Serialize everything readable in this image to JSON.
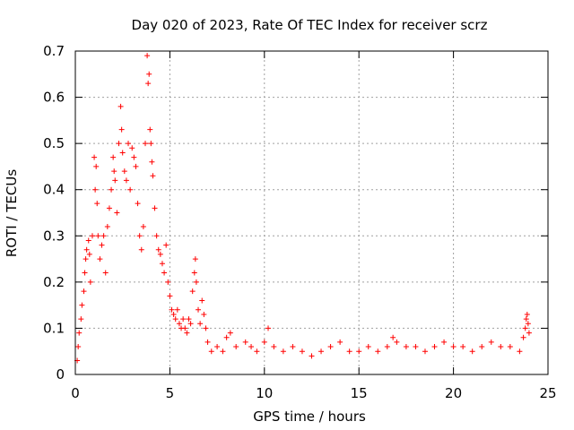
{
  "chart_data": {
    "type": "scatter",
    "title": "Day 020 of 2023, Rate Of TEC Index for receiver scrz",
    "xlabel": "GPS time / hours",
    "ylabel": "ROTI / TECUs",
    "xlim": [
      0,
      25
    ],
    "ylim": [
      0,
      0.7
    ],
    "x_ticks": [
      0,
      5,
      10,
      15,
      20,
      25
    ],
    "x_tick_labels": [
      "0",
      "5",
      "10",
      "15",
      "20",
      "25"
    ],
    "y_ticks": [
      0,
      0.1,
      0.2,
      0.3,
      0.4,
      0.5,
      0.6,
      0.7
    ],
    "y_tick_labels": [
      "0",
      "0.1",
      "0.2",
      "0.3",
      "0.4",
      "0.5",
      "0.6",
      "0.7"
    ],
    "grid": true,
    "marker": "plus",
    "color": "#ff0000",
    "series": [
      {
        "name": "ROTI",
        "points": [
          [
            0.1,
            0.03
          ],
          [
            0.15,
            0.06
          ],
          [
            0.2,
            0.09
          ],
          [
            0.3,
            0.12
          ],
          [
            0.35,
            0.15
          ],
          [
            0.45,
            0.18
          ],
          [
            0.5,
            0.22
          ],
          [
            0.55,
            0.25
          ],
          [
            0.6,
            0.27
          ],
          [
            0.7,
            0.29
          ],
          [
            0.75,
            0.26
          ],
          [
            0.8,
            0.2
          ],
          [
            0.9,
            0.3
          ],
          [
            1.0,
            0.47
          ],
          [
            1.05,
            0.4
          ],
          [
            1.1,
            0.45
          ],
          [
            1.15,
            0.37
          ],
          [
            1.2,
            0.3
          ],
          [
            1.3,
            0.25
          ],
          [
            1.4,
            0.28
          ],
          [
            1.5,
            0.3
          ],
          [
            1.6,
            0.22
          ],
          [
            1.7,
            0.32
          ],
          [
            1.8,
            0.36
          ],
          [
            1.9,
            0.4
          ],
          [
            2.0,
            0.47
          ],
          [
            2.05,
            0.44
          ],
          [
            2.1,
            0.42
          ],
          [
            2.2,
            0.35
          ],
          [
            2.3,
            0.5
          ],
          [
            2.4,
            0.58
          ],
          [
            2.45,
            0.53
          ],
          [
            2.5,
            0.48
          ],
          [
            2.6,
            0.44
          ],
          [
            2.7,
            0.42
          ],
          [
            2.8,
            0.5
          ],
          [
            2.9,
            0.4
          ],
          [
            3.0,
            0.49
          ],
          [
            3.1,
            0.47
          ],
          [
            3.2,
            0.45
          ],
          [
            3.3,
            0.37
          ],
          [
            3.4,
            0.3
          ],
          [
            3.5,
            0.27
          ],
          [
            3.6,
            0.32
          ],
          [
            3.7,
            0.5
          ],
          [
            3.8,
            0.69
          ],
          [
            3.85,
            0.63
          ],
          [
            3.9,
            0.65
          ],
          [
            3.95,
            0.53
          ],
          [
            4.0,
            0.5
          ],
          [
            4.05,
            0.46
          ],
          [
            4.1,
            0.43
          ],
          [
            4.2,
            0.36
          ],
          [
            4.3,
            0.3
          ],
          [
            4.4,
            0.27
          ],
          [
            4.5,
            0.26
          ],
          [
            4.6,
            0.24
          ],
          [
            4.7,
            0.22
          ],
          [
            4.8,
            0.28
          ],
          [
            4.9,
            0.2
          ],
          [
            5.0,
            0.17
          ],
          [
            5.1,
            0.14
          ],
          [
            5.2,
            0.13
          ],
          [
            5.3,
            0.12
          ],
          [
            5.4,
            0.14
          ],
          [
            5.5,
            0.11
          ],
          [
            5.6,
            0.1
          ],
          [
            5.7,
            0.12
          ],
          [
            5.8,
            0.1
          ],
          [
            5.9,
            0.09
          ],
          [
            6.0,
            0.12
          ],
          [
            6.1,
            0.11
          ],
          [
            6.2,
            0.18
          ],
          [
            6.3,
            0.22
          ],
          [
            6.35,
            0.25
          ],
          [
            6.4,
            0.2
          ],
          [
            6.5,
            0.14
          ],
          [
            6.6,
            0.11
          ],
          [
            6.7,
            0.16
          ],
          [
            6.8,
            0.13
          ],
          [
            6.9,
            0.1
          ],
          [
            7.0,
            0.07
          ],
          [
            7.2,
            0.05
          ],
          [
            7.5,
            0.06
          ],
          [
            7.8,
            0.05
          ],
          [
            8.0,
            0.08
          ],
          [
            8.2,
            0.09
          ],
          [
            8.5,
            0.06
          ],
          [
            9.0,
            0.07
          ],
          [
            9.3,
            0.06
          ],
          [
            9.6,
            0.05
          ],
          [
            10.0,
            0.07
          ],
          [
            10.2,
            0.1
          ],
          [
            10.5,
            0.06
          ],
          [
            11.0,
            0.05
          ],
          [
            11.5,
            0.06
          ],
          [
            12.0,
            0.05
          ],
          [
            12.5,
            0.04
          ],
          [
            13.0,
            0.05
          ],
          [
            13.5,
            0.06
          ],
          [
            14.0,
            0.07
          ],
          [
            14.5,
            0.05
          ],
          [
            15.0,
            0.05
          ],
          [
            15.5,
            0.06
          ],
          [
            16.0,
            0.05
          ],
          [
            16.5,
            0.06
          ],
          [
            16.8,
            0.08
          ],
          [
            17.0,
            0.07
          ],
          [
            17.5,
            0.06
          ],
          [
            18.0,
            0.06
          ],
          [
            18.5,
            0.05
          ],
          [
            19.0,
            0.06
          ],
          [
            19.5,
            0.07
          ],
          [
            20.0,
            0.06
          ],
          [
            20.5,
            0.06
          ],
          [
            21.0,
            0.05
          ],
          [
            21.5,
            0.06
          ],
          [
            22.0,
            0.07
          ],
          [
            22.5,
            0.06
          ],
          [
            23.0,
            0.06
          ],
          [
            23.5,
            0.05
          ],
          [
            23.7,
            0.08
          ],
          [
            23.8,
            0.1
          ],
          [
            23.85,
            0.12
          ],
          [
            23.9,
            0.13
          ],
          [
            23.95,
            0.11
          ],
          [
            24.0,
            0.09
          ]
        ]
      }
    ]
  }
}
